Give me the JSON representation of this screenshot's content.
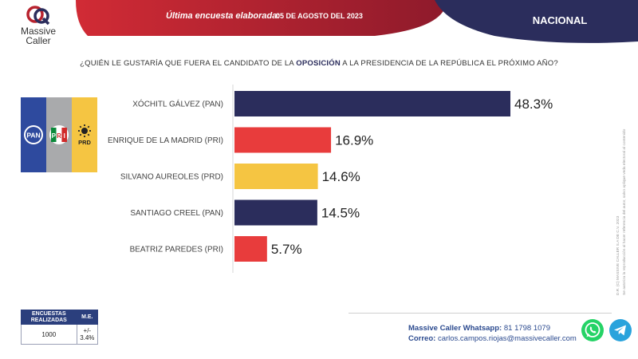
{
  "header": {
    "brand_line1": "Massive",
    "brand_line2": "Caller",
    "survey_label": "Última encuesta elaborada:",
    "survey_date": "05 DE AGOSTO DEL 2023",
    "scope": "NACIONAL"
  },
  "question": {
    "before": "¿QUIÉN LE GUSTARÍA QUE FUERA EL CANDIDATO DE LA ",
    "highlight": "OPOSICIÓN",
    "after": " A LA PRESIDENCIA DE LA REPÚBLICA EL PRÓXIMO AÑO?"
  },
  "party_logos": {
    "pan": "PAN",
    "pri_letters": [
      "P",
      "R",
      "I"
    ],
    "prd": "PRD"
  },
  "chart_data": {
    "type": "bar",
    "orientation": "horizontal",
    "categories": [
      "XÓCHITL GÁLVEZ (PAN)",
      "ENRIQUE DE LA MADRID (PRI)",
      "SILVANO AUREOLES (PRD)",
      "SANTIAGO CREEL (PAN)",
      "BEATRIZ PAREDES (PRI)"
    ],
    "values": [
      48.3,
      16.9,
      14.6,
      14.5,
      5.7
    ],
    "value_labels": [
      "48.3%",
      "16.9%",
      "14.6%",
      "14.5%",
      "5.7%"
    ],
    "colors": [
      "#2b2d5c",
      "#e83c3c",
      "#f5c542",
      "#2b2d5c",
      "#e83c3c"
    ],
    "xlim": [
      0,
      48.3
    ],
    "grid": false,
    "legend": "none"
  },
  "stats": {
    "col1": "ENCUESTAS REALIZADAS",
    "col2": "M.E.",
    "count": "1000",
    "margin": "+/- 3.4%"
  },
  "contact": {
    "whatsapp_label": "Massive Caller Whatsapp:",
    "whatsapp_number": "81 1798 1079",
    "email_label": "Correo:",
    "email": "carlos.campos.riojas@massivecaller.com"
  },
  "side_note": {
    "line1": "D.R. (C) MASSIVE CALLER S.A DE C.V. 2023",
    "line2": "Se autoriza la reproducción al hacer referencia del autor, salvo aplique veda electoral al contenido"
  },
  "colors": {
    "banner_red": "#b8232f",
    "banner_navy": "#2b2d5c",
    "pan_blue": "#2e4a9e",
    "pri_gray": "#a9aaac",
    "prd_yellow": "#f5c542",
    "whatsapp_green": "#25d366",
    "telegram_blue": "#2aa3dc"
  }
}
